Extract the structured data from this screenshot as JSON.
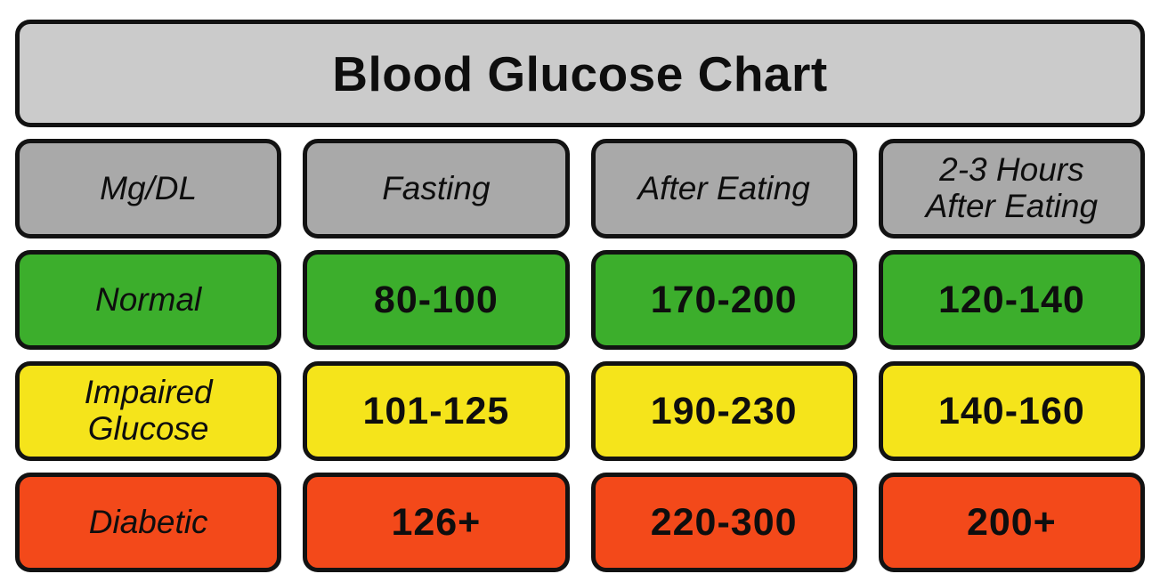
{
  "chart_data": {
    "type": "table",
    "title": "Blood Glucose Chart",
    "unit": "Mg/DL",
    "columns": [
      "Mg/DL",
      "Fasting",
      "After Eating",
      "2-3 Hours\nAfter Eating"
    ],
    "rows": [
      {
        "label": "Normal",
        "status": "normal",
        "values": [
          "80-100",
          "170-200",
          "120-140"
        ]
      },
      {
        "label": "Impaired\nGlucose",
        "status": "impaired",
        "values": [
          "101-125",
          "190-230",
          "140-160"
        ]
      },
      {
        "label": "Diabetic",
        "status": "diabetic",
        "values": [
          "126+",
          "220-300",
          "200+"
        ]
      }
    ],
    "legend_colors": {
      "normal": "#3cae2c",
      "impaired_glucose": "#f5e41b",
      "diabetic": "#f3491a"
    }
  },
  "colors": {
    "title_bg": "#cbcbcb",
    "header_bg": "#a9a9a9",
    "border": "#121212",
    "page_bg": "#ffffff",
    "text": "#0e0e0e"
  }
}
